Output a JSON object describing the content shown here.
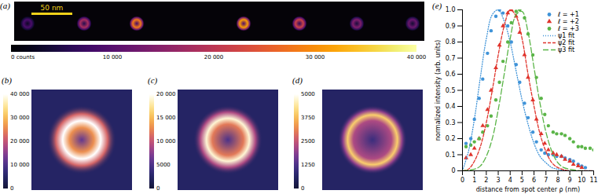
{
  "figure": {
    "panel_a": {
      "label": "(a)",
      "scale_bar": "50 nm",
      "colorbar_range": [
        0,
        40000
      ],
      "colorbar_ticks": [
        {
          "value": 0,
          "label": "0 counts"
        },
        {
          "value": 10000,
          "label": "10 000"
        },
        {
          "value": 20000,
          "label": "20 000"
        },
        {
          "value": 30000,
          "label": "30 000"
        },
        {
          "value": 40000,
          "label": "40 000"
        }
      ]
    },
    "panel_b": {
      "label": "(b)",
      "colorbar_range": [
        0,
        40000
      ],
      "colorbar_ticks": [
        0,
        {
          "value": 10000,
          "label": "10 000"
        },
        {
          "value": 20000,
          "label": "20 000"
        },
        {
          "value": 30000,
          "label": "30 000"
        },
        {
          "value": 40000,
          "label": "40 000"
        }
      ]
    },
    "panel_c": {
      "label": "(c)",
      "colorbar_range": [
        0,
        20000
      ],
      "colorbar_ticks": [
        0,
        5000,
        {
          "value": 10000,
          "label": "10 000"
        },
        {
          "value": 15000,
          "label": "15 000"
        },
        {
          "value": 20000,
          "label": "20 000"
        }
      ]
    },
    "panel_d": {
      "label": "(d)",
      "colorbar_range": [
        0,
        5000
      ],
      "colorbar_ticks": [
        0,
        1250,
        2500,
        3750,
        5000
      ]
    }
  },
  "chart_data": {
    "type": "line",
    "panel_label": "(e)",
    "x_label": "distance from spot center ρ (nm)",
    "y_label": "normalized intensity (arb. units)",
    "xlim": [
      0,
      11
    ],
    "xticks": [
      0,
      1,
      2,
      3,
      4,
      5,
      6,
      7,
      8,
      9,
      10,
      11
    ],
    "ylim": [
      0,
      1
    ],
    "yticks": [
      0,
      0.1,
      0.2,
      0.3,
      0.4,
      0.5,
      0.6,
      0.7,
      0.8,
      0.9,
      {
        "value": 1,
        "label": "1.0"
      }
    ],
    "legend": "top-right",
    "series": [
      {
        "name": "ℓ = +1",
        "type": "scatter",
        "marker": "circle",
        "color": "#3f93d8",
        "x": [
          0.3,
          0.7,
          1.0,
          1.4,
          1.7,
          2.1,
          2.4,
          2.8,
          3.1,
          3.4,
          3.8,
          4.1,
          4.5,
          4.8,
          5.2,
          5.5,
          5.9,
          6.2,
          6.6,
          6.9,
          7.2,
          7.6,
          7.9,
          8.3,
          8.6,
          9.0,
          9.3,
          9.7,
          10.0,
          10.3
        ],
        "values": [
          0.17,
          0.2,
          0.32,
          0.45,
          0.57,
          0.73,
          0.87,
          0.96,
          1.0,
          0.98,
          0.9,
          0.8,
          0.66,
          0.55,
          0.42,
          0.33,
          0.24,
          0.18,
          0.13,
          0.11,
          0.1,
          0.1,
          0.09,
          0.09,
          0.08,
          0.07,
          0.06,
          0.04,
          0.03,
          0.02
        ]
      },
      {
        "name": "ℓ = +2",
        "type": "scatter",
        "marker": "triangle",
        "color": "#e0342c",
        "x": [
          0.3,
          0.7,
          1.0,
          1.4,
          1.7,
          2.1,
          2.4,
          2.8,
          3.1,
          3.4,
          3.8,
          4.1,
          4.5,
          4.8,
          5.2,
          5.5,
          5.9,
          6.2,
          6.6,
          6.9,
          7.2,
          7.6,
          7.9,
          8.3,
          8.6,
          9.0,
          9.3,
          9.7,
          10.0
        ],
        "values": [
          0.08,
          0.1,
          0.14,
          0.2,
          0.28,
          0.38,
          0.5,
          0.64,
          0.78,
          0.9,
          0.98,
          1.0,
          0.96,
          0.86,
          0.72,
          0.58,
          0.44,
          0.32,
          0.23,
          0.17,
          0.13,
          0.11,
          0.1,
          0.09,
          0.07,
          0.06,
          0.04,
          0.03,
          0.02
        ]
      },
      {
        "name": "ℓ = +3",
        "type": "scatter",
        "marker": "circle",
        "color": "#5bb548",
        "x": [
          0.3,
          0.7,
          1.0,
          1.4,
          1.7,
          2.1,
          2.4,
          2.8,
          3.1,
          3.4,
          3.8,
          4.1,
          4.5,
          4.8,
          5.2,
          5.5,
          5.9,
          6.2,
          6.6,
          6.9,
          7.2,
          7.6,
          7.9,
          8.3,
          8.6,
          9.0,
          9.3,
          9.7,
          10.0,
          10.3,
          10.7,
          11.0
        ],
        "values": [
          0.15,
          0.16,
          0.18,
          0.2,
          0.24,
          0.28,
          0.34,
          0.44,
          0.55,
          0.68,
          0.8,
          0.92,
          0.99,
          1.0,
          0.95,
          0.85,
          0.72,
          0.58,
          0.45,
          0.35,
          0.28,
          0.24,
          0.23,
          0.23,
          0.22,
          0.2,
          0.18,
          0.15,
          0.15,
          0.14,
          0.14,
          0.13
        ]
      },
      {
        "name": "ψ1 fit",
        "type": "line",
        "line_style": "dotted",
        "color": "#3f93d8",
        "x": [
          0,
          0.5,
          1,
          1.5,
          2,
          2.5,
          3,
          3.5,
          4,
          4.5,
          5,
          5.5,
          6,
          6.5,
          7,
          7.5,
          8,
          9,
          10,
          11
        ],
        "values": [
          0,
          0.12,
          0.32,
          0.58,
          0.82,
          0.97,
          1.0,
          0.93,
          0.8,
          0.62,
          0.44,
          0.29,
          0.17,
          0.09,
          0.05,
          0.02,
          0.01,
          0,
          0,
          0
        ]
      },
      {
        "name": "ψ2 fit",
        "type": "line",
        "line_style": "dashed",
        "color": "#e0342c",
        "x": [
          0,
          0.5,
          1,
          1.5,
          2,
          2.5,
          3,
          3.5,
          4,
          4.5,
          5,
          5.5,
          6,
          6.5,
          7,
          7.5,
          8,
          9,
          10,
          11
        ],
        "values": [
          0,
          0.01,
          0.06,
          0.15,
          0.3,
          0.5,
          0.72,
          0.9,
          1.0,
          0.96,
          0.82,
          0.6,
          0.4,
          0.23,
          0.12,
          0.05,
          0.02,
          0,
          0,
          0
        ]
      },
      {
        "name": "ψ3 fit",
        "type": "line",
        "line_style": "long-dashed",
        "color": "#5bb548",
        "x": [
          0,
          1,
          1.5,
          2,
          2.5,
          3,
          3.5,
          4,
          4.5,
          5,
          5.5,
          6,
          6.5,
          7,
          7.5,
          8,
          8.5,
          9,
          10,
          11
        ],
        "values": [
          0,
          0.01,
          0.03,
          0.09,
          0.2,
          0.38,
          0.6,
          0.82,
          0.97,
          0.99,
          0.86,
          0.64,
          0.42,
          0.24,
          0.12,
          0.05,
          0.02,
          0.01,
          0,
          0
        ]
      }
    ]
  }
}
